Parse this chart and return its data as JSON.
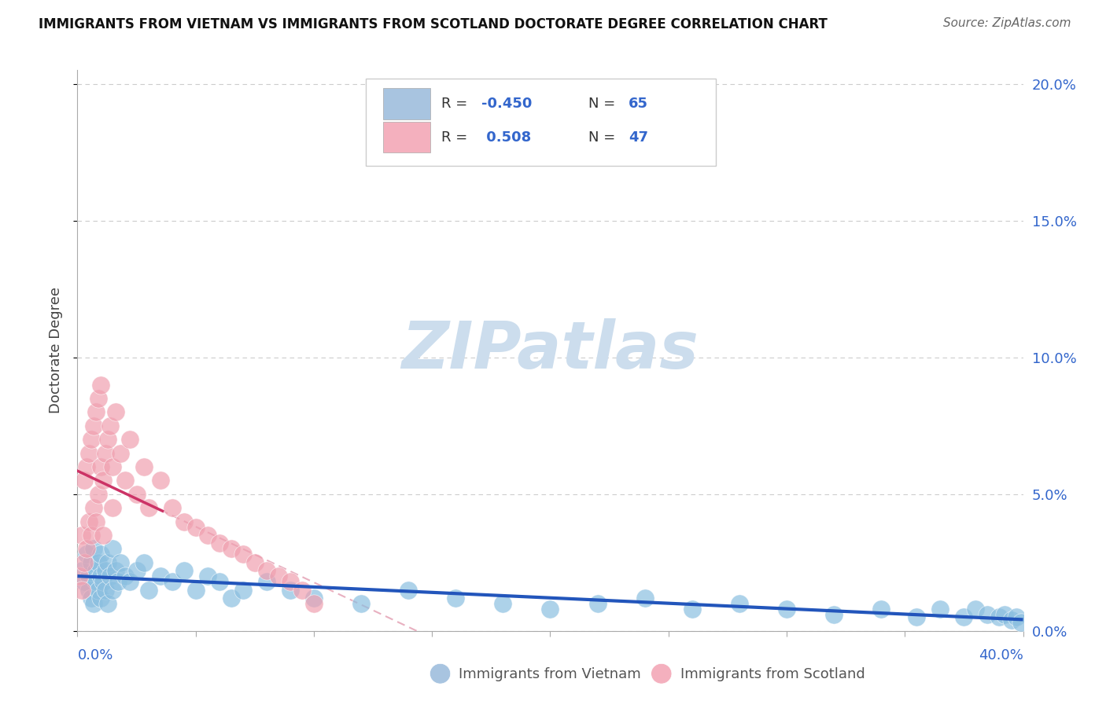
{
  "title": "IMMIGRANTS FROM VIETNAM VS IMMIGRANTS FROM SCOTLAND DOCTORATE DEGREE CORRELATION CHART",
  "source": "Source: ZipAtlas.com",
  "ylabel": "Doctorate Degree",
  "xlim": [
    0.0,
    0.4
  ],
  "ylim": [
    0.0,
    0.205
  ],
  "yticks": [
    0.0,
    0.05,
    0.1,
    0.15,
    0.2
  ],
  "ytick_labels": [
    "0.0%",
    "5.0%",
    "10.0%",
    "15.0%",
    "20.0%"
  ],
  "xtick_left_label": "0.0%",
  "xtick_right_label": "40.0%",
  "background_color": "#ffffff",
  "grid_color": "#cccccc",
  "vietnam_dot_color": "#8bbfe0",
  "scotland_dot_color": "#f0a0b0",
  "vietnam_line_color": "#2255bb",
  "scotland_solid_color": "#cc3366",
  "scotland_dash_color": "#e8b0c0",
  "tick_color": "#3366cc",
  "watermark_color": "#ccdded",
  "legend_box_color": "#cccccc",
  "legend_R_color": "#3366cc",
  "legend_patch_blue": "#a8c4e0",
  "legend_patch_pink": "#f4b0be",
  "bottom_legend_vietnam": "Immigrants from Vietnam",
  "bottom_legend_scotland": "Immigrants from Scotland",
  "vietnam_x": [
    0.002,
    0.003,
    0.004,
    0.005,
    0.005,
    0.006,
    0.006,
    0.007,
    0.007,
    0.008,
    0.008,
    0.009,
    0.009,
    0.01,
    0.01,
    0.01,
    0.011,
    0.012,
    0.012,
    0.013,
    0.013,
    0.014,
    0.015,
    0.015,
    0.016,
    0.017,
    0.018,
    0.02,
    0.022,
    0.025,
    0.028,
    0.03,
    0.035,
    0.04,
    0.045,
    0.05,
    0.055,
    0.06,
    0.065,
    0.07,
    0.08,
    0.09,
    0.1,
    0.12,
    0.14,
    0.16,
    0.18,
    0.2,
    0.22,
    0.24,
    0.26,
    0.28,
    0.3,
    0.32,
    0.34,
    0.355,
    0.365,
    0.375,
    0.38,
    0.385,
    0.39,
    0.392,
    0.395,
    0.397,
    0.399
  ],
  "vietnam_y": [
    0.022,
    0.018,
    0.028,
    0.02,
    0.015,
    0.025,
    0.012,
    0.03,
    0.01,
    0.022,
    0.018,
    0.025,
    0.015,
    0.02,
    0.028,
    0.012,
    0.018,
    0.022,
    0.015,
    0.025,
    0.01,
    0.02,
    0.03,
    0.015,
    0.022,
    0.018,
    0.025,
    0.02,
    0.018,
    0.022,
    0.025,
    0.015,
    0.02,
    0.018,
    0.022,
    0.015,
    0.02,
    0.018,
    0.012,
    0.015,
    0.018,
    0.015,
    0.012,
    0.01,
    0.015,
    0.012,
    0.01,
    0.008,
    0.01,
    0.012,
    0.008,
    0.01,
    0.008,
    0.006,
    0.008,
    0.005,
    0.008,
    0.005,
    0.008,
    0.006,
    0.005,
    0.006,
    0.004,
    0.005,
    0.003
  ],
  "scotland_x": [
    0.001,
    0.002,
    0.002,
    0.003,
    0.003,
    0.004,
    0.004,
    0.005,
    0.005,
    0.006,
    0.006,
    0.007,
    0.007,
    0.008,
    0.008,
    0.009,
    0.009,
    0.01,
    0.01,
    0.011,
    0.011,
    0.012,
    0.013,
    0.014,
    0.015,
    0.015,
    0.016,
    0.018,
    0.02,
    0.022,
    0.025,
    0.028,
    0.03,
    0.035,
    0.04,
    0.045,
    0.05,
    0.055,
    0.06,
    0.065,
    0.07,
    0.075,
    0.08,
    0.085,
    0.09,
    0.095,
    0.1
  ],
  "scotland_y": [
    0.02,
    0.035,
    0.015,
    0.055,
    0.025,
    0.06,
    0.03,
    0.065,
    0.04,
    0.07,
    0.035,
    0.075,
    0.045,
    0.08,
    0.04,
    0.085,
    0.05,
    0.06,
    0.09,
    0.055,
    0.035,
    0.065,
    0.07,
    0.075,
    0.06,
    0.045,
    0.08,
    0.065,
    0.055,
    0.07,
    0.05,
    0.06,
    0.045,
    0.055,
    0.045,
    0.04,
    0.038,
    0.035,
    0.032,
    0.03,
    0.028,
    0.025,
    0.022,
    0.02,
    0.018,
    0.015,
    0.01
  ]
}
